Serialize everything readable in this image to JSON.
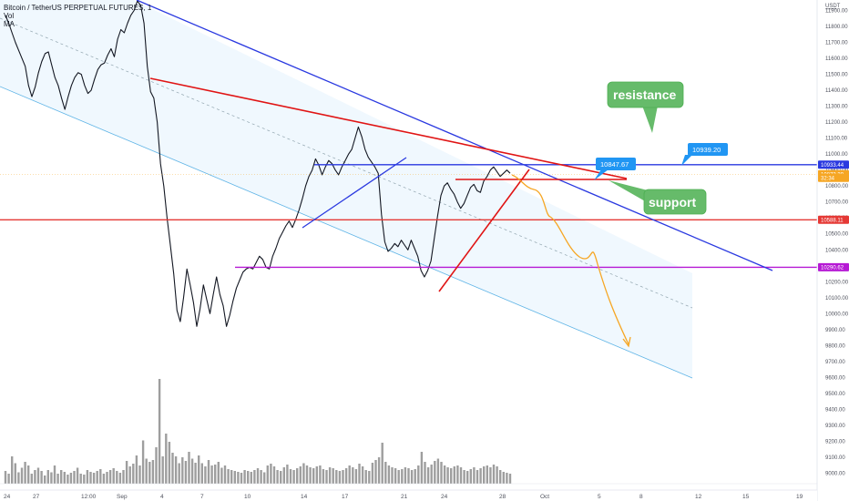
{
  "header": {
    "title": "Bitcoin / TetherUS PERPETUAL FUTURES, 1",
    "vol_label": "Vol",
    "ma_label": "MA"
  },
  "axis": {
    "currency": "USDT",
    "scale_label": "✓"
  },
  "chart_data": {
    "type": "line",
    "title": "",
    "series": [
      {
        "values": [
          11870,
          11820,
          11760,
          11700,
          11650,
          11600,
          11550,
          11430,
          11360,
          11420,
          11510,
          11580,
          11630,
          11640,
          11560,
          11480,
          11430,
          11350,
          11280,
          11360,
          11430,
          11480,
          11510,
          11500,
          11430,
          11380,
          11400,
          11470,
          11530,
          11560,
          11570,
          11620,
          11660,
          11610,
          11720,
          11780,
          11760,
          11820,
          11870,
          11900,
          11960,
          11930,
          11820,
          11550,
          11390,
          11350,
          11200,
          10940,
          10800,
          10600,
          10430,
          10250,
          10020,
          9950,
          10100,
          10280,
          10180,
          10070,
          9920,
          10030,
          10180,
          10090,
          10000,
          10120,
          10230,
          10120,
          10050,
          9920,
          9990,
          10080,
          10160,
          10210,
          10260,
          10280,
          10290,
          10280,
          10320,
          10360,
          10340,
          10290,
          10280,
          10360,
          10410,
          10470,
          10510,
          10550,
          10580,
          10540,
          10590,
          10650,
          10720,
          10800,
          10860,
          10900,
          10970,
          10930,
          10870,
          10920,
          10960,
          10940,
          10900,
          10870,
          10920,
          10960,
          11000,
          11030,
          11100,
          11170,
          11110,
          11030,
          10980,
          10950,
          10920,
          10880,
          10620,
          10450,
          10390,
          10410,
          10440,
          10420,
          10460,
          10430,
          10400,
          10460,
          10410,
          10360,
          10270,
          10230,
          10270,
          10330,
          10470,
          10610,
          10740,
          10800,
          10820,
          10780,
          10750,
          10700,
          10660,
          10690,
          10740,
          10790,
          10810,
          10770,
          10760,
          10830,
          10860,
          10900,
          10920,
          10890,
          10860,
          10880,
          10900,
          10880
        ]
      },
      {
        "name": "Vol",
        "values": [
          28,
          22,
          60,
          45,
          25,
          35,
          48,
          40,
          22,
          30,
          35,
          28,
          18,
          30,
          25,
          40,
          22,
          30,
          26,
          20,
          24,
          28,
          35,
          22,
          20,
          30,
          26,
          24,
          28,
          32,
          22,
          26,
          30,
          34,
          28,
          24,
          30,
          50,
          38,
          44,
          62,
          40,
          95,
          55,
          48,
          52,
          80,
          230,
          60,
          110,
          92,
          68,
          60,
          45,
          58,
          50,
          70,
          55,
          46,
          62,
          45,
          38,
          52,
          40,
          42,
          48,
          35,
          40,
          32,
          30,
          28,
          26,
          24,
          30,
          28,
          26,
          30,
          34,
          30,
          25,
          40,
          44,
          38,
          30,
          28,
          36,
          42,
          32,
          30,
          34,
          38,
          45,
          40,
          36,
          34,
          38,
          40,
          32,
          30,
          36,
          34,
          30,
          28,
          30,
          34,
          40,
          36,
          32,
          44,
          38,
          30,
          28,
          46,
          52,
          58,
          90,
          48,
          40,
          36,
          34,
          30,
          32,
          36,
          34,
          30,
          32,
          40,
          70,
          48,
          36,
          42,
          50,
          55,
          48,
          40,
          36,
          34,
          38,
          40,
          36,
          30,
          28,
          32,
          36,
          30,
          34,
          38,
          40,
          36,
          42,
          38,
          30,
          26,
          24,
          22
        ]
      }
    ],
    "x_tick_labels": [
      "24",
      "27",
      "12:00",
      "Sep",
      "4",
      "7",
      "10",
      "14",
      "17",
      "21",
      "24",
      "28",
      "Oct",
      "5",
      "8",
      "12",
      "15",
      "19"
    ],
    "y_tick_labels": [
      "11900.00",
      "11800.00",
      "11700.00",
      "11600.00",
      "11500.00",
      "11400.00",
      "11300.00",
      "11200.00",
      "11100.00",
      "11000.00",
      "10900.00",
      "10800.00",
      "10700.00",
      "10600.00",
      "10500.00",
      "10400.00",
      "10300.00",
      "10200.00",
      "10100.00",
      "10000.00",
      "9900.00",
      "9800.00",
      "9700.00",
      "9600.00",
      "9500.00",
      "9400.00",
      "9300.00",
      "9200.00",
      "9100.00",
      "9000.00"
    ],
    "ylim": [
      8940,
      11980
    ],
    "price_tags": [
      {
        "label": "10933.44",
        "value": 10933.44,
        "color": "#2a39e0"
      },
      {
        "label": "10873.39",
        "value": 10873.39,
        "color": "#f6a623"
      },
      {
        "label": "32:34",
        "value": 10851,
        "color": "#f6a623"
      },
      {
        "label": "10588.11",
        "value": 10588.11,
        "color": "#e53935"
      },
      {
        "label": "10290.62",
        "value": 10290.62,
        "color": "#b61ad4"
      }
    ],
    "annotations": [
      {
        "text": "resistance",
        "kind": "callout",
        "color": "#66bb6a"
      },
      {
        "text": "support",
        "kind": "callout",
        "color": "#66bb6a"
      },
      {
        "text": "10939.20",
        "kind": "price-tag",
        "color": "#2196f3"
      },
      {
        "text": "10847.67",
        "kind": "price-tag",
        "color": "#2196f3"
      }
    ]
  }
}
